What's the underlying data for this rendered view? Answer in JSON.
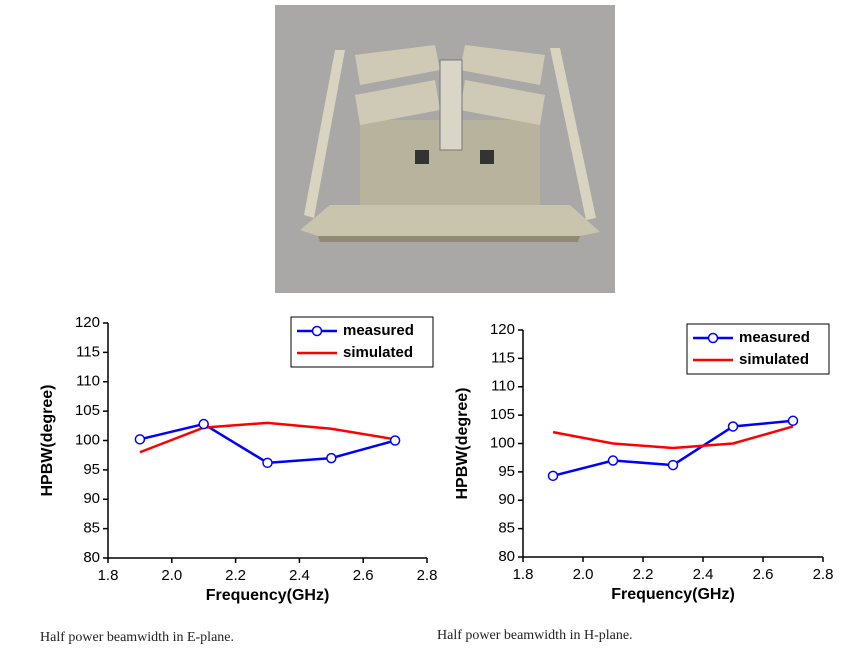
{
  "chart_data": [
    {
      "type": "line",
      "xlabel": "Frequency(GHz)",
      "ylabel": "HPBW(degree)",
      "x": [
        1.9,
        2.1,
        2.3,
        2.5,
        2.7
      ],
      "series": [
        {
          "name": "measured",
          "color": "#0000ff",
          "marker": "circle",
          "values": [
            100.2,
            102.8,
            96.2,
            97,
            100
          ]
        },
        {
          "name": "simulated",
          "color": "#ff0000",
          "values": [
            98,
            102.2,
            103,
            102,
            100.2
          ]
        }
      ],
      "xlim": [
        1.8,
        2.8
      ],
      "xticks": [
        1.8,
        {
          "value": 2,
          "label": "2.0"
        },
        2.2,
        2.4,
        2.6,
        2.8
      ],
      "ylim": [
        80,
        120
      ],
      "yticks": [
        80,
        85,
        90,
        95,
        100,
        105,
        110,
        115,
        120
      ],
      "legend": "upper right",
      "caption": "Half power beamwidth in E-plane."
    },
    {
      "type": "line",
      "xlabel": "Frequency(GHz)",
      "ylabel": "HPBW(degree)",
      "x": [
        1.9,
        2.1,
        2.3,
        2.5,
        2.7
      ],
      "series": [
        {
          "name": "measured",
          "color": "#0000ff",
          "marker": "circle",
          "values": [
            94.3,
            97,
            96.2,
            103,
            104
          ]
        },
        {
          "name": "simulated",
          "color": "#ff0000",
          "values": [
            102,
            100,
            99.2,
            100,
            103
          ]
        }
      ],
      "xlim": [
        1.8,
        2.8
      ],
      "xticks": [
        1.8,
        {
          "value": 2,
          "label": "2.0"
        },
        2.2,
        2.4,
        2.6,
        2.8
      ],
      "ylim": [
        80,
        120
      ],
      "yticks": [
        80,
        85,
        90,
        95,
        100,
        105,
        110,
        115,
        120
      ],
      "legend": "upper right",
      "caption": "Half power beamwidth in H-plane."
    }
  ]
}
